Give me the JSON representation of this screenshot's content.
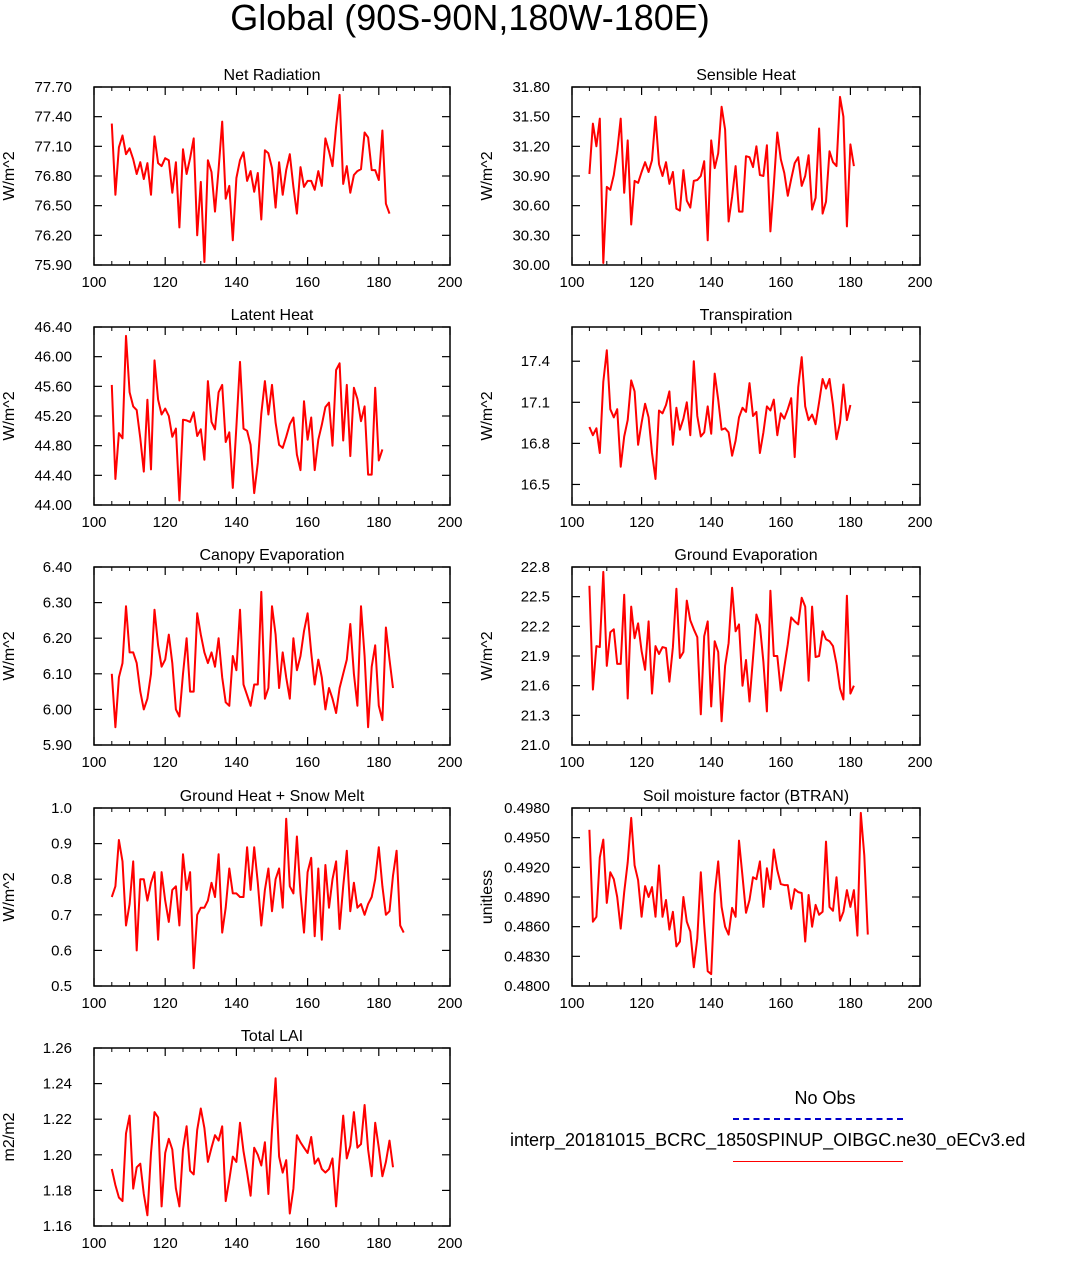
{
  "page_title": "Global (90S-90N,180W-180E)",
  "legend": {
    "obs_label": "No Obs",
    "obs_color": "#0000cc",
    "model_label": "interp_20181015_BCRC_1850SPINUP_OIBGC.ne30_oECv3.ed",
    "model_color": "#ff0000"
  },
  "chart_data": [
    {
      "type": "line",
      "title": "Net Radiation",
      "ylabel": "W/m^2",
      "xlim": [
        100,
        200
      ],
      "ylim": [
        75.9,
        77.7
      ],
      "xticks": [
        "100",
        "120",
        "140",
        "160",
        "180",
        "200"
      ],
      "yticks": [
        "75.90",
        "76.20",
        "76.50",
        "76.80",
        "77.10",
        "77.40",
        "77.70"
      ],
      "x_start": 105,
      "values": [
        77.33,
        76.61,
        77.09,
        77.21,
        77.02,
        77.08,
        76.97,
        76.82,
        76.94,
        76.77,
        76.93,
        76.61,
        77.2,
        76.93,
        76.9,
        76.98,
        76.96,
        76.63,
        76.94,
        76.28,
        77.07,
        76.82,
        76.98,
        77.18,
        76.2,
        76.74,
        75.93,
        76.96,
        76.84,
        76.44,
        76.87,
        77.35,
        76.57,
        76.7,
        76.15,
        76.78,
        76.96,
        77.04,
        76.75,
        76.85,
        76.64,
        76.83,
        76.36,
        77.06,
        77.03,
        76.88,
        76.48,
        76.94,
        76.61,
        76.86,
        77.02,
        76.69,
        76.42,
        76.89,
        76.69,
        76.75,
        76.75,
        76.66,
        76.85,
        76.7,
        77.18,
        77.05,
        76.9,
        77.3,
        77.62,
        76.72,
        76.9,
        76.63,
        76.81,
        76.85,
        76.87,
        77.24,
        77.19,
        76.86,
        76.86,
        76.76,
        77.26,
        76.52,
        76.42
      ]
    },
    {
      "type": "line",
      "title": "Sensible Heat",
      "ylabel": "W/m^2",
      "xlim": [
        100,
        200
      ],
      "ylim": [
        30.0,
        31.8
      ],
      "xticks": [
        "100",
        "120",
        "140",
        "160",
        "180",
        "200"
      ],
      "yticks": [
        "30.00",
        "30.30",
        "30.60",
        "30.90",
        "31.20",
        "31.50",
        "31.80"
      ],
      "x_start": 105,
      "values": [
        30.92,
        31.43,
        31.2,
        31.48,
        30.02,
        30.79,
        30.76,
        30.91,
        31.15,
        31.48,
        30.73,
        31.26,
        30.41,
        30.85,
        30.83,
        30.94,
        31.04,
        30.94,
        31.06,
        31.5,
        31.02,
        30.9,
        31.04,
        30.82,
        30.94,
        30.57,
        30.55,
        30.96,
        30.65,
        30.58,
        30.85,
        30.86,
        30.9,
        31.05,
        30.25,
        31.26,
        30.98,
        31.13,
        31.6,
        31.37,
        30.44,
        30.69,
        31.0,
        30.54,
        30.54,
        31.1,
        31.09,
        30.99,
        31.2,
        30.91,
        30.9,
        31.21,
        30.34,
        30.81,
        31.34,
        31.07,
        30.93,
        30.7,
        30.87,
        31.03,
        31.09,
        30.8,
        30.9,
        31.11,
        30.56,
        30.68,
        31.38,
        30.52,
        30.64,
        31.15,
        31.04,
        31.0,
        31.7,
        31.5,
        30.39,
        31.22,
        31.0
      ]
    },
    {
      "type": "line",
      "title": "Latent Heat",
      "ylabel": "W/m^2",
      "xlim": [
        100,
        200
      ],
      "ylim": [
        44.0,
        46.4
      ],
      "xticks": [
        "100",
        "120",
        "140",
        "160",
        "180",
        "200"
      ],
      "yticks": [
        "44.00",
        "44.40",
        "44.80",
        "45.20",
        "45.60",
        "46.00",
        "46.40"
      ],
      "x_start": 105,
      "values": [
        45.62,
        44.35,
        44.97,
        44.9,
        46.28,
        45.52,
        45.33,
        45.28,
        44.9,
        44.45,
        45.42,
        44.48,
        45.95,
        45.42,
        45.22,
        45.3,
        45.2,
        44.92,
        45.03,
        44.06,
        45.15,
        45.14,
        45.12,
        45.25,
        44.93,
        45.02,
        44.61,
        45.67,
        45.12,
        45.02,
        45.52,
        45.62,
        44.85,
        44.98,
        44.23,
        45.06,
        45.93,
        45.03,
        45.0,
        44.81,
        44.16,
        44.57,
        45.23,
        45.67,
        45.22,
        45.62,
        45.11,
        44.81,
        44.77,
        44.92,
        45.09,
        45.18,
        44.68,
        44.47,
        45.4,
        44.88,
        45.18,
        44.47,
        44.88,
        45.08,
        45.32,
        45.38,
        44.8,
        45.82,
        45.91,
        44.87,
        45.62,
        44.66,
        45.58,
        45.43,
        45.13,
        45.33,
        44.41,
        44.41,
        45.58,
        44.6,
        44.75
      ]
    },
    {
      "type": "line",
      "title": "Transpiration",
      "ylabel": "W/m^2",
      "xlim": [
        100,
        200
      ],
      "ylim": [
        16.35,
        17.65
      ],
      "xticks": [
        "100",
        "120",
        "140",
        "160",
        "180",
        "200"
      ],
      "yticks": [
        "16.5",
        "16.8",
        "17.1",
        "17.4"
      ],
      "x_start": 105,
      "values": [
        16.92,
        16.86,
        16.91,
        16.73,
        17.25,
        17.48,
        17.05,
        16.99,
        17.05,
        16.63,
        16.85,
        16.97,
        17.26,
        17.18,
        16.79,
        16.95,
        17.09,
        16.99,
        16.73,
        16.54,
        17.04,
        17.02,
        17.08,
        17.18,
        16.79,
        17.06,
        16.9,
        16.98,
        17.1,
        16.86,
        17.4,
        17.0,
        16.85,
        16.88,
        17.07,
        16.87,
        17.31,
        17.12,
        16.9,
        16.91,
        16.88,
        16.71,
        16.82,
        16.99,
        17.06,
        17.03,
        17.24,
        17.0,
        17.03,
        16.73,
        16.88,
        17.07,
        17.04,
        17.12,
        16.86,
        17.02,
        16.98,
        17.05,
        17.13,
        16.7,
        17.21,
        17.43,
        17.07,
        16.97,
        17.01,
        16.94,
        17.1,
        17.27,
        17.2,
        17.27,
        17.08,
        16.83,
        16.95,
        17.23,
        16.97,
        17.08
      ]
    },
    {
      "type": "line",
      "title": "Canopy Evaporation",
      "ylabel": "W/m^2",
      "xlim": [
        100,
        200
      ],
      "ylim": [
        5.9,
        6.4
      ],
      "xticks": [
        "100",
        "120",
        "140",
        "160",
        "180",
        "200"
      ],
      "yticks": [
        "5.90",
        "6.00",
        "6.10",
        "6.20",
        "6.30",
        "6.40"
      ],
      "x_start": 105,
      "values": [
        6.1,
        5.95,
        6.09,
        6.13,
        6.29,
        6.16,
        6.16,
        6.13,
        6.05,
        6.0,
        6.03,
        6.1,
        6.28,
        6.18,
        6.12,
        6.14,
        6.21,
        6.13,
        6.0,
        5.98,
        6.1,
        6.2,
        6.05,
        6.05,
        6.27,
        6.21,
        6.16,
        6.13,
        6.16,
        6.12,
        6.2,
        6.09,
        6.02,
        6.01,
        6.15,
        6.11,
        6.28,
        6.07,
        6.04,
        6.01,
        6.07,
        6.07,
        6.33,
        6.03,
        6.06,
        6.29,
        6.21,
        6.06,
        6.16,
        6.09,
        6.03,
        6.2,
        6.11,
        6.15,
        6.22,
        6.27,
        6.16,
        6.07,
        6.14,
        6.09,
        6.0,
        6.06,
        6.03,
        5.99,
        6.06,
        6.1,
        6.14,
        6.24,
        6.1,
        6.01,
        6.29,
        6.15,
        5.95,
        6.12,
        6.18,
        6.01,
        5.97,
        6.23,
        6.14,
        6.06
      ]
    },
    {
      "type": "line",
      "title": "Ground Evaporation",
      "ylabel": "W/m^2",
      "xlim": [
        100,
        200
      ],
      "ylim": [
        21.0,
        22.8
      ],
      "xticks": [
        "100",
        "120",
        "140",
        "160",
        "180",
        "200"
      ],
      "yticks": [
        "21.0",
        "21.3",
        "21.6",
        "21.9",
        "22.2",
        "22.5",
        "22.8"
      ],
      "x_start": 105,
      "values": [
        22.61,
        21.56,
        22.0,
        21.99,
        22.75,
        21.8,
        22.14,
        22.17,
        21.82,
        21.82,
        22.52,
        21.47,
        22.4,
        22.08,
        22.23,
        21.95,
        21.76,
        22.25,
        21.52,
        22.0,
        21.92,
        21.99,
        21.98,
        21.64,
        21.99,
        22.58,
        21.88,
        21.94,
        22.46,
        22.26,
        22.17,
        22.09,
        21.31,
        22.1,
        22.25,
        21.39,
        22.05,
        21.94,
        21.24,
        21.8,
        22.03,
        22.59,
        22.15,
        22.22,
        21.6,
        21.86,
        21.44,
        21.88,
        22.32,
        22.21,
        21.84,
        21.34,
        22.56,
        21.9,
        21.9,
        21.55,
        21.79,
        22.02,
        22.29,
        22.25,
        22.22,
        22.49,
        22.4,
        21.65,
        22.4,
        21.89,
        21.9,
        22.15,
        22.07,
        22.05,
        22.0,
        21.82,
        21.57,
        21.46,
        22.51,
        21.52,
        21.6
      ]
    },
    {
      "type": "line",
      "title": "Ground Heat + Snow Melt",
      "ylabel": "W/m^2",
      "xlim": [
        100,
        200
      ],
      "ylim": [
        0.5,
        1.0
      ],
      "xticks": [
        "100",
        "120",
        "140",
        "160",
        "180",
        "200"
      ],
      "yticks": [
        "0.5",
        "0.6",
        "0.7",
        "0.8",
        "0.9",
        "1.0"
      ],
      "x_start": 105,
      "values": [
        0.75,
        0.78,
        0.91,
        0.85,
        0.67,
        0.73,
        0.85,
        0.6,
        0.8,
        0.8,
        0.74,
        0.79,
        0.82,
        0.63,
        0.82,
        0.74,
        0.68,
        0.77,
        0.78,
        0.67,
        0.87,
        0.77,
        0.82,
        0.55,
        0.7,
        0.72,
        0.72,
        0.74,
        0.79,
        0.75,
        0.87,
        0.65,
        0.72,
        0.83,
        0.76,
        0.76,
        0.75,
        0.75,
        0.89,
        0.77,
        0.89,
        0.79,
        0.67,
        0.77,
        0.83,
        0.71,
        0.8,
        0.83,
        0.72,
        0.97,
        0.78,
        0.76,
        0.92,
        0.76,
        0.65,
        0.82,
        0.86,
        0.64,
        0.83,
        0.63,
        0.84,
        0.72,
        0.8,
        0.85,
        0.66,
        0.78,
        0.88,
        0.71,
        0.79,
        0.72,
        0.73,
        0.7,
        0.73,
        0.75,
        0.8,
        0.89,
        0.78,
        0.7,
        0.71,
        0.81,
        0.88,
        0.67,
        0.65
      ]
    },
    {
      "type": "line",
      "title": "Soil moisture factor (BTRAN)",
      "ylabel": "unitless",
      "xlim": [
        100,
        200
      ],
      "ylim": [
        0.48,
        0.498
      ],
      "xticks": [
        "100",
        "120",
        "140",
        "160",
        "180",
        "200"
      ],
      "yticks": [
        "0.4800",
        "0.4830",
        "0.4860",
        "0.4890",
        "0.4920",
        "0.4950",
        "0.4980"
      ],
      "x_start": 105,
      "values": [
        0.4958,
        0.4865,
        0.487,
        0.493,
        0.4948,
        0.4884,
        0.4915,
        0.4908,
        0.489,
        0.4858,
        0.4895,
        0.4925,
        0.497,
        0.4922,
        0.4907,
        0.487,
        0.4901,
        0.489,
        0.49,
        0.487,
        0.4922,
        0.487,
        0.4887,
        0.4857,
        0.4875,
        0.484,
        0.4845,
        0.489,
        0.4865,
        0.4855,
        0.4819,
        0.4848,
        0.4915,
        0.4862,
        0.4815,
        0.4812,
        0.4893,
        0.4926,
        0.488,
        0.486,
        0.4852,
        0.4879,
        0.487,
        0.4947,
        0.4911,
        0.4874,
        0.4887,
        0.491,
        0.4908,
        0.4926,
        0.488,
        0.4919,
        0.4898,
        0.4938,
        0.4917,
        0.4903,
        0.4902,
        0.4902,
        0.4878,
        0.4898,
        0.4895,
        0.4894,
        0.4845,
        0.4892,
        0.486,
        0.4882,
        0.4872,
        0.4875,
        0.4946,
        0.488,
        0.4876,
        0.491,
        0.4866,
        0.4875,
        0.4897,
        0.488,
        0.4897,
        0.4851,
        0.4975,
        0.4932,
        0.4852
      ]
    },
    {
      "type": "line",
      "title": "Total LAI",
      "ylabel": "m2/m2",
      "xlim": [
        100,
        200
      ],
      "ylim": [
        1.16,
        1.26
      ],
      "xticks": [
        "100",
        "120",
        "140",
        "160",
        "180",
        "200"
      ],
      "yticks": [
        "1.16",
        "1.18",
        "1.20",
        "1.22",
        "1.24",
        "1.26"
      ],
      "x_start": 105,
      "values": [
        1.192,
        1.183,
        1.176,
        1.174,
        1.212,
        1.222,
        1.181,
        1.193,
        1.195,
        1.178,
        1.166,
        1.201,
        1.224,
        1.221,
        1.171,
        1.201,
        1.209,
        1.203,
        1.181,
        1.171,
        1.203,
        1.216,
        1.191,
        1.189,
        1.214,
        1.226,
        1.215,
        1.196,
        1.204,
        1.211,
        1.208,
        1.216,
        1.174,
        1.186,
        1.199,
        1.196,
        1.218,
        1.202,
        1.19,
        1.177,
        1.204,
        1.2,
        1.194,
        1.207,
        1.178,
        1.214,
        1.243,
        1.199,
        1.19,
        1.197,
        1.167,
        1.181,
        1.211,
        1.207,
        1.204,
        1.201,
        1.21,
        1.195,
        1.198,
        1.192,
        1.19,
        1.192,
        1.198,
        1.171,
        1.197,
        1.222,
        1.198,
        1.205,
        1.224,
        1.204,
        1.206,
        1.228,
        1.203,
        1.188,
        1.218,
        1.204,
        1.188,
        1.196,
        1.208,
        1.193
      ]
    }
  ]
}
